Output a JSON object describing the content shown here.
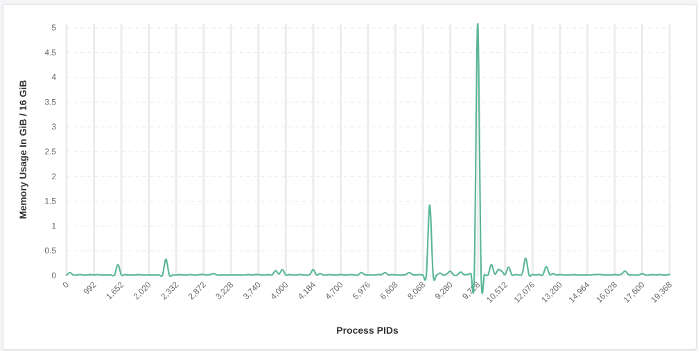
{
  "chart_data": {
    "type": "line",
    "xlabel": "Process PIDs",
    "ylabel": "Memory Usage In GiB / 16 GiB",
    "ylim": [
      0,
      5
    ],
    "y_ticks": [
      "0",
      "0.5",
      "1",
      "1.5",
      "2",
      "2.5",
      "3",
      "3.5",
      "4",
      "4.5",
      "5"
    ],
    "x_tick_labels": [
      "0",
      "992",
      "1,652",
      "2,020",
      "2,332",
      "2,872",
      "3,228",
      "3,740",
      "4,000",
      "4,184",
      "4,700",
      "5,976",
      "6,608",
      "8,068",
      "9,280",
      "9,728",
      "10,512",
      "12,076",
      "13,200",
      "14,964",
      "16,028",
      "17,600",
      "19,368"
    ],
    "grid": true,
    "line_color": "#5ab795",
    "series": [
      {
        "values": [
          0.01,
          0.06,
          0.01,
          0.01,
          0.02,
          0.01,
          0.01,
          0.02,
          0.01,
          0.02,
          0.01,
          0.01,
          0.01,
          0.01,
          0.01,
          0.22,
          0.01,
          0.02,
          0.01,
          0.01,
          0.01,
          0.02,
          0.01,
          0.01,
          0.01,
          0.01,
          0.01,
          0.01,
          0.01,
          0.33,
          0.01,
          0.01,
          0.01,
          0.02,
          0.01,
          0.01,
          0.02,
          0.01,
          0.01,
          0.02,
          0.02,
          0.01,
          0.02,
          0.04,
          0.01,
          0.01,
          0.01,
          0.01,
          0.01,
          0.01,
          0.01,
          0.01,
          0.01,
          0.02,
          0.01,
          0.02,
          0.02,
          0.01,
          0.01,
          0.02,
          0.01,
          0.1,
          0.03,
          0.12,
          0.01,
          0.02,
          0.01,
          0.01,
          0.02,
          0.01,
          0.01,
          0.02,
          0.12,
          0.01,
          0.04,
          0.01,
          0.01,
          0.02,
          0.01,
          0.01,
          0.02,
          0.01,
          0.01,
          0.02,
          0.01,
          0.01,
          0.06,
          0.02,
          0.01,
          0.01,
          0.01,
          0.02,
          0.02,
          0.06,
          0.01,
          0.02,
          0.01,
          0.01,
          0.01,
          0.02,
          0.06,
          0.02,
          0.01,
          0.02,
          0.01,
          0.01,
          1.42,
          0.01,
          0.01,
          0.05,
          0.01,
          0.03,
          0.09,
          0.01,
          0.01,
          0.07,
          0.02,
          0.02,
          0.04,
          0.01,
          5.08,
          0.01,
          0.02,
          0.01,
          0.22,
          0.03,
          0.12,
          0.09,
          0.02,
          0.17,
          0.01,
          0.02,
          0.01,
          0.04,
          0.35,
          0.01,
          0.02,
          0.01,
          0.02,
          0.01,
          0.18,
          0.02,
          0.04,
          0.01,
          0.02,
          0.01,
          0.01,
          0.01,
          0.02,
          0.01,
          0.01,
          0.01,
          0.01,
          0.01,
          0.02,
          0.02,
          0.02,
          0.01,
          0.01,
          0.01,
          0.02,
          0.01,
          0.03,
          0.09,
          0.02,
          0.01,
          0.01,
          0.01,
          0.04,
          0.01,
          0.01,
          0.02,
          0.01,
          0.02,
          0.01,
          0.01,
          0.02
        ]
      }
    ]
  }
}
